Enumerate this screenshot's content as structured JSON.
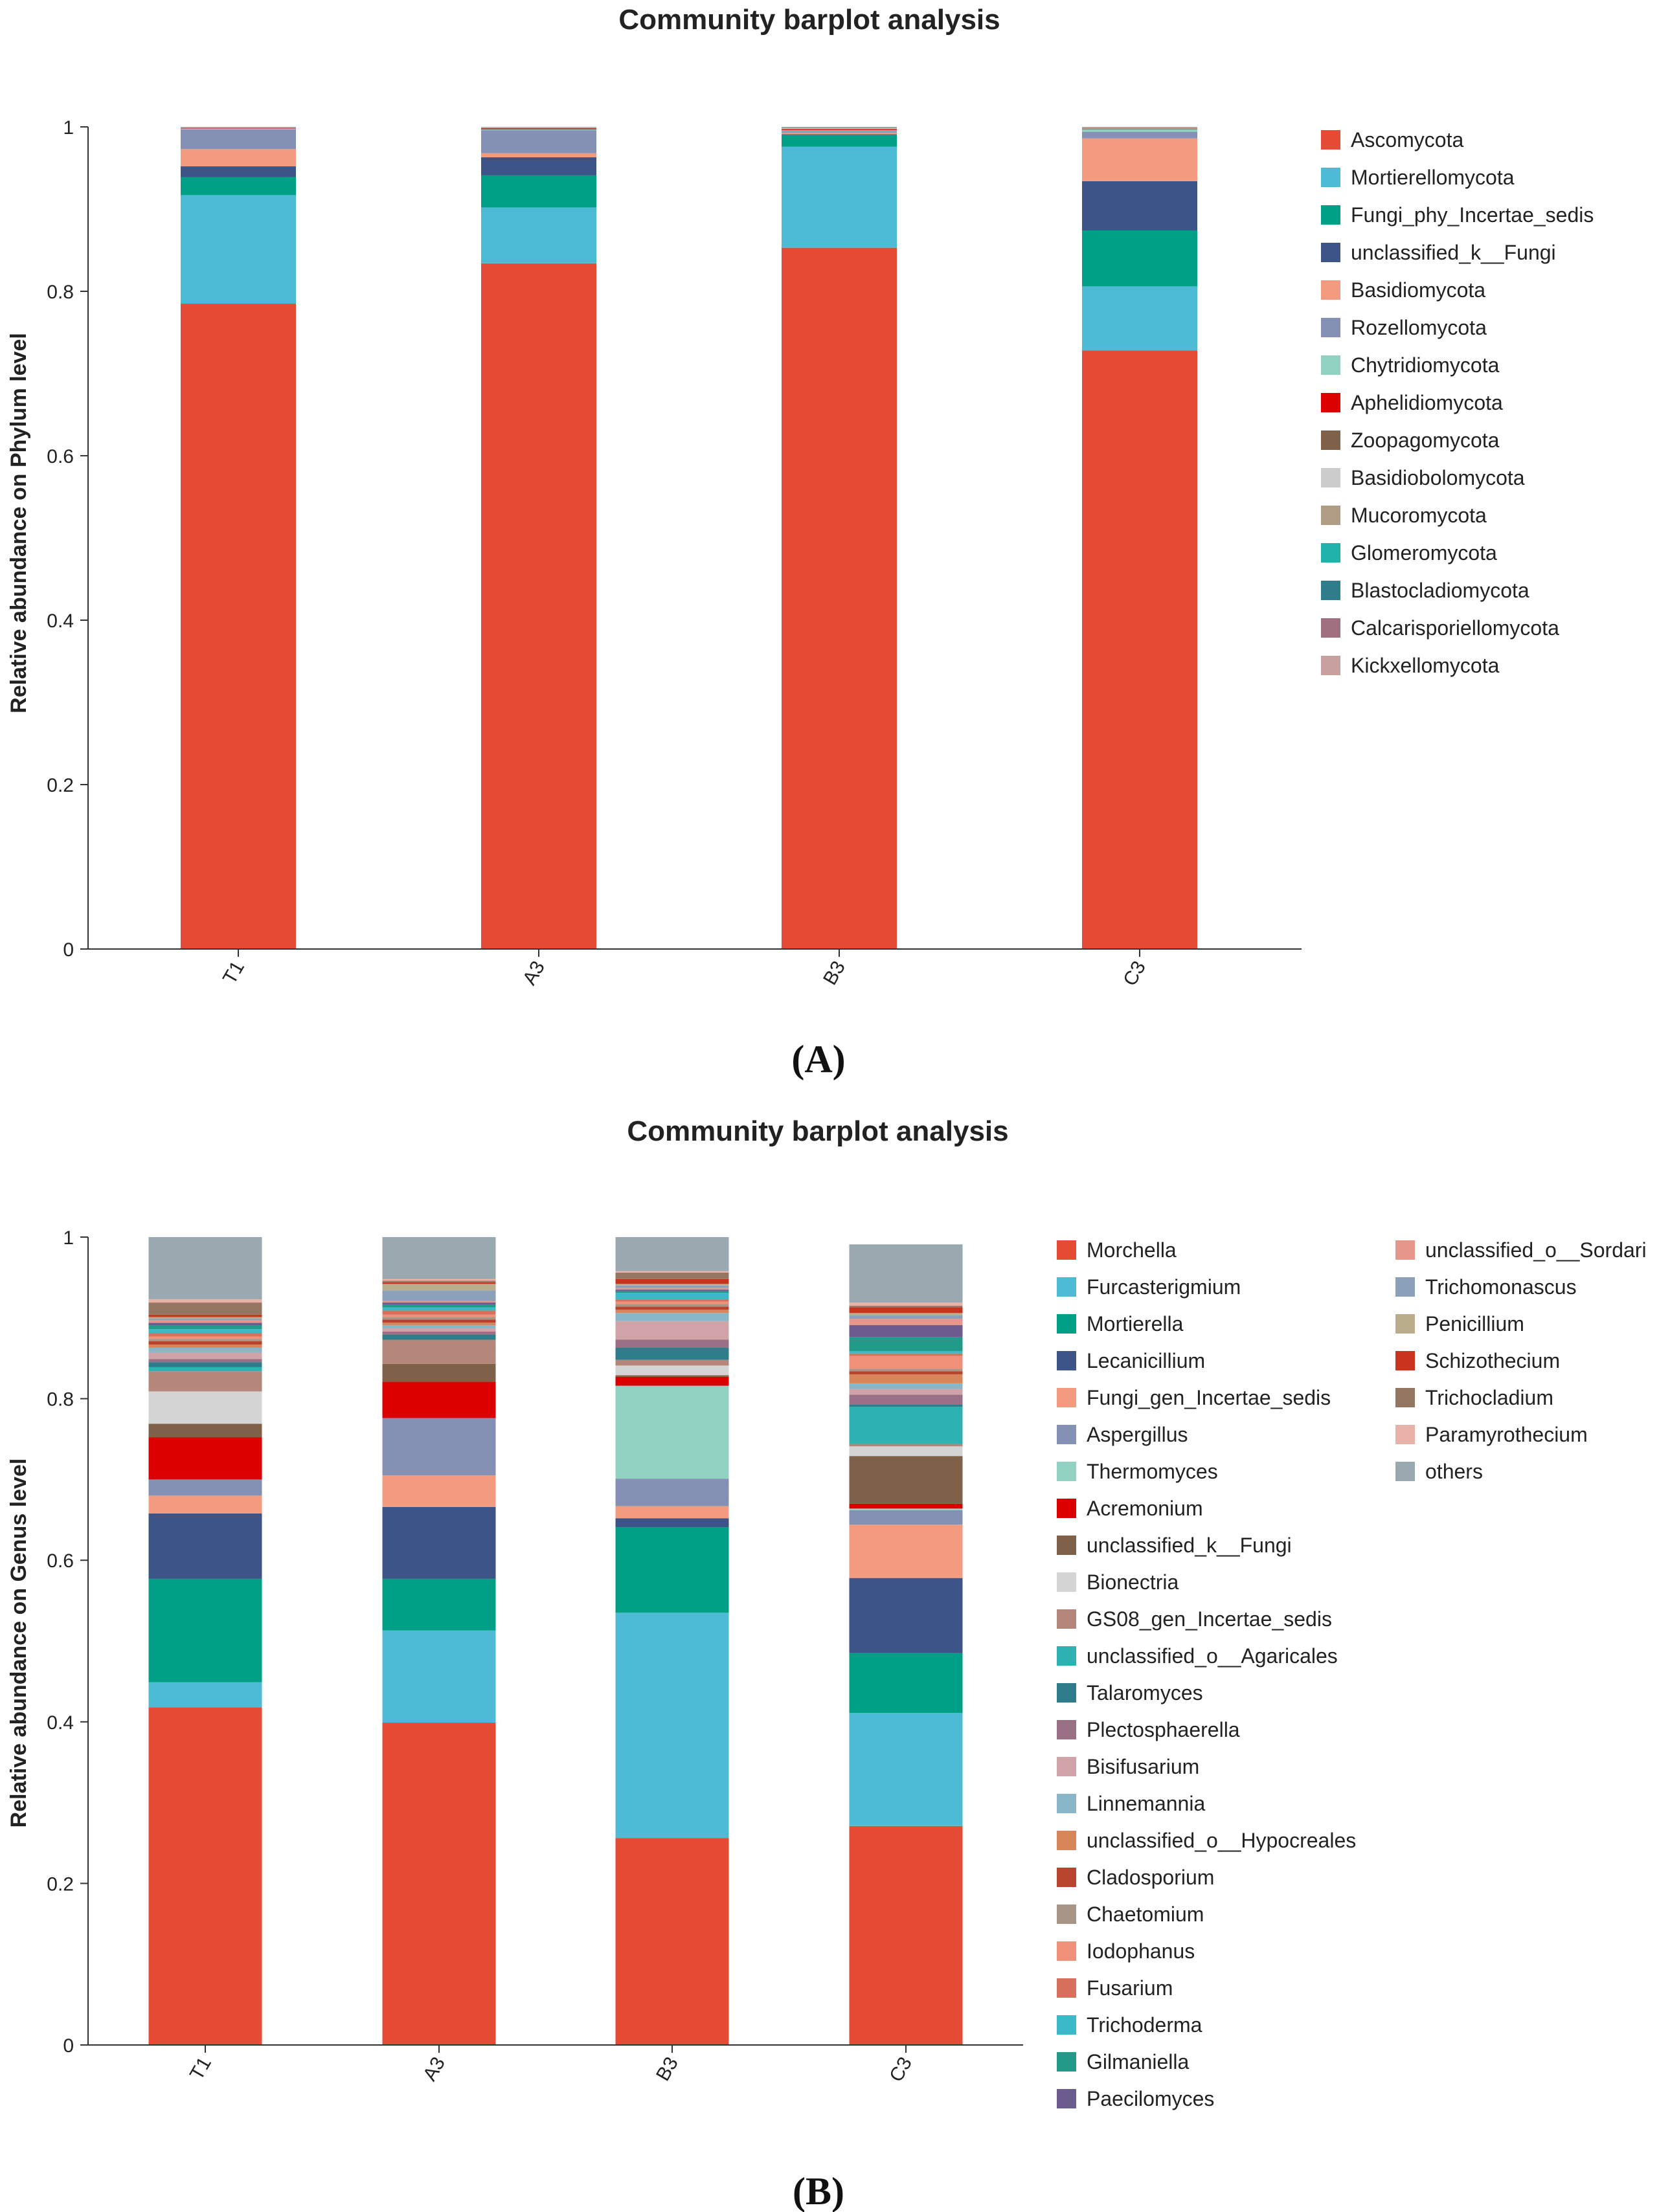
{
  "chart_data": [
    {
      "type": "bar",
      "stacked": true,
      "panel_label": "(A)",
      "title": "Community barplot analysis",
      "xlabel": "",
      "ylabel": "Relative abundance on Phylum level",
      "ylim": [
        0,
        1
      ],
      "yticks": [
        "0",
        "0.2",
        "0.4",
        "0.6",
        "0.8",
        "1"
      ],
      "categories": [
        "T1",
        "A3",
        "B3",
        "C3"
      ],
      "legend_position": "right",
      "series": [
        {
          "name": "Ascomycota",
          "color": "#e64b35",
          "values": [
            0.785,
            0.834,
            0.853,
            0.728
          ]
        },
        {
          "name": "Mortierellomycota",
          "color": "#4dbbd5",
          "values": [
            0.132,
            0.068,
            0.123,
            0.078
          ]
        },
        {
          "name": "Fungi_phy_Incertae_sedis",
          "color": "#00a087",
          "values": [
            0.022,
            0.039,
            0.014,
            0.068
          ]
        },
        {
          "name": "unclassified_k__Fungi",
          "color": "#3c5488",
          "values": [
            0.013,
            0.022,
            0.001,
            0.06
          ]
        },
        {
          "name": "Basidiomycota",
          "color": "#f39b7f",
          "values": [
            0.021,
            0.005,
            0.002,
            0.052
          ]
        },
        {
          "name": "Rozellomycota",
          "color": "#8491b4",
          "values": [
            0.024,
            0.028,
            0.002,
            0.008
          ]
        },
        {
          "name": "Chytridiomycota",
          "color": "#91d1c2",
          "values": [
            0.001,
            0.001,
            0.001,
            0.003
          ]
        },
        {
          "name": "Aphelidiomycota",
          "color": "#dc0000",
          "values": [
            0.0005,
            0.001,
            0.001,
            0.0005
          ]
        },
        {
          "name": "Zoopagomycota",
          "color": "#7e6148",
          "values": [
            0.0005,
            0.0005,
            0.0005,
            0.0005
          ]
        },
        {
          "name": "Basidiobolomycota",
          "color": "#cccccc",
          "values": [
            0.0005,
            0.0005,
            0.0005,
            0.0005
          ]
        },
        {
          "name": "Mucoromycota",
          "color": "#b09c85",
          "values": [
            0.0005,
            0.0005,
            0.001,
            0.001
          ]
        },
        {
          "name": "Glomeromycota",
          "color": "#20b2aa",
          "values": [
            0.0005,
            0.0005,
            0.0005,
            0.0005
          ]
        },
        {
          "name": "Blastocladiomycota",
          "color": "#2f7c8a",
          "values": [
            0.0003,
            0.0003,
            0.0003,
            0.0003
          ]
        },
        {
          "name": "Calcarisporiellomycota",
          "color": "#a07080",
          "values": [
            0.0003,
            0.0003,
            0.0003,
            0.0003
          ]
        },
        {
          "name": "Kickxellomycota",
          "color": "#c8a0a0",
          "values": [
            0.0003,
            0.0003,
            0.0003,
            0.0003
          ]
        }
      ]
    },
    {
      "type": "bar",
      "stacked": true,
      "panel_label": "(B)",
      "title": "Community barplot analysis",
      "xlabel": "",
      "ylabel": "Relative abundance on Genus level",
      "ylim": [
        0,
        1
      ],
      "yticks": [
        "0",
        "0.2",
        "0.4",
        "0.6",
        "0.8",
        "1"
      ],
      "categories": [
        "T1",
        "A3",
        "B3",
        "C3"
      ],
      "legend_position": "right",
      "series": [
        {
          "name": "Morchella",
          "color": "#e64b35",
          "values": [
            0.418,
            0.399,
            0.256,
            0.271
          ]
        },
        {
          "name": "Furcasterigmium",
          "color": "#4dbbd5",
          "values": [
            0.031,
            0.114,
            0.279,
            0.14
          ]
        },
        {
          "name": "Mortierella",
          "color": "#00a087",
          "values": [
            0.128,
            0.064,
            0.106,
            0.074
          ]
        },
        {
          "name": "Lecanicillium",
          "color": "#3c5488",
          "values": [
            0.081,
            0.089,
            0.011,
            0.093
          ]
        },
        {
          "name": "Fungi_gen_Incertae_sedis",
          "color": "#f39b7f",
          "values": [
            0.022,
            0.039,
            0.015,
            0.066
          ]
        },
        {
          "name": "Aspergillus",
          "color": "#8491b4",
          "values": [
            0.02,
            0.071,
            0.034,
            0.018
          ]
        },
        {
          "name": "Thermomyces",
          "color": "#91d1c2",
          "values": [
            0.0,
            0.0,
            0.115,
            0.002
          ]
        },
        {
          "name": "Acremonium",
          "color": "#dc0000",
          "values": [
            0.052,
            0.045,
            0.011,
            0.006
          ]
        },
        {
          "name": "unclassified_k__Fungi",
          "color": "#7e6148",
          "values": [
            0.017,
            0.022,
            0.002,
            0.059
          ]
        },
        {
          "name": "Bionectria",
          "color": "#d4d4d4",
          "values": [
            0.04,
            0.0,
            0.012,
            0.012
          ]
        },
        {
          "name": "GS08_gen_Incertae_sedis",
          "color": "#b5877a",
          "values": [
            0.025,
            0.03,
            0.007,
            0.003
          ]
        },
        {
          "name": "unclassified_o__Agaricales",
          "color": "#2eb1b1",
          "values": [
            0.005,
            0.0,
            0.0,
            0.046
          ]
        },
        {
          "name": "Talaromyces",
          "color": "#2f7c8a",
          "values": [
            0.006,
            0.006,
            0.015,
            0.003
          ]
        },
        {
          "name": "Plectosphaerella",
          "color": "#9a7086",
          "values": [
            0.004,
            0.004,
            0.01,
            0.012
          ]
        },
        {
          "name": "Bisifusarium",
          "color": "#cfa3a8",
          "values": [
            0.008,
            0.004,
            0.023,
            0.007
          ]
        },
        {
          "name": "Linnemannia",
          "color": "#88b6c8",
          "values": [
            0.006,
            0.004,
            0.01,
            0.007
          ]
        },
        {
          "name": "unclassified_o__Hypocreales",
          "color": "#d9855a",
          "values": [
            0.004,
            0.003,
            0.004,
            0.011
          ]
        },
        {
          "name": "Cladosporium",
          "color": "#b8442e",
          "values": [
            0.004,
            0.004,
            0.004,
            0.004
          ]
        },
        {
          "name": "Chaetomium",
          "color": "#a89585",
          "values": [
            0.003,
            0.003,
            0.003,
            0.003
          ]
        },
        {
          "name": "Iodophanus",
          "color": "#ef9078",
          "values": [
            0.003,
            0.003,
            0.003,
            0.016
          ]
        },
        {
          "name": "Fusarium",
          "color": "#d8705e",
          "values": [
            0.004,
            0.005,
            0.003,
            0.003
          ]
        },
        {
          "name": "Trichoderma",
          "color": "#3ab9c8",
          "values": [
            0.005,
            0.004,
            0.008,
            0.003
          ]
        },
        {
          "name": "Gilmaniella",
          "color": "#229a8a",
          "values": [
            0.005,
            0.003,
            0.002,
            0.017
          ]
        },
        {
          "name": "Paecilomyces",
          "color": "#6b5b8e",
          "values": [
            0.003,
            0.003,
            0.002,
            0.015
          ]
        },
        {
          "name": "unclassified_o__Sordari",
          "color": "#e7968a",
          "values": [
            0.003,
            0.002,
            0.002,
            0.008
          ]
        },
        {
          "name": "Trichomonascus",
          "color": "#8ba1ba",
          "values": [
            0.002,
            0.013,
            0.003,
            0.004
          ]
        },
        {
          "name": "Penicillium",
          "color": "#b9ad8c",
          "values": [
            0.002,
            0.008,
            0.002,
            0.003
          ]
        },
        {
          "name": "Schizothecium",
          "color": "#c8341e",
          "values": [
            0.003,
            0.002,
            0.006,
            0.007
          ]
        },
        {
          "name": "Trichocladium",
          "color": "#957663",
          "values": [
            0.015,
            0.002,
            0.008,
            0.002
          ]
        },
        {
          "name": "Paramyrothecium",
          "color": "#e8b2a8",
          "values": [
            0.004,
            0.002,
            0.002,
            0.004
          ]
        },
        {
          "name": "others",
          "color": "#9aa8b0",
          "values": [
            0.077,
            0.052,
            0.052,
            0.072
          ]
        }
      ]
    }
  ]
}
